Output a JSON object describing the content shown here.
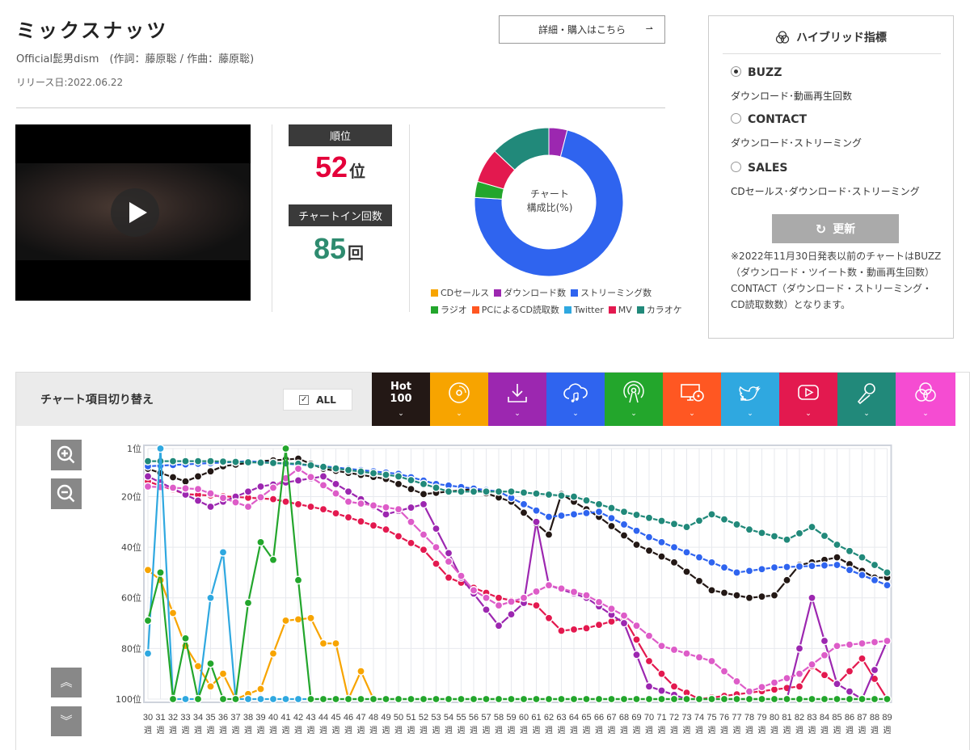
{
  "song": {
    "title": "ミックスナッツ",
    "artist_line": "Official髭男dism　(作詞：藤原聡 / 作曲：藤原聡)",
    "release": "リリース日:2022.06.22"
  },
  "buy_button": "詳細・購入はこちら",
  "stats": {
    "rank_label": "順位",
    "rank_value": "52",
    "rank_unit": "位",
    "count_label": "チャートイン回数",
    "count_value": "85",
    "count_unit": "回"
  },
  "donut": {
    "label_line1": "チャート",
    "label_line2": "構成比(%)"
  },
  "legend": [
    {
      "name": "CDセールス",
      "color": "#f7a400"
    },
    {
      "name": "ダウンロード数",
      "color": "#9c27b0"
    },
    {
      "name": "ストリーミング数",
      "color": "#2f64ef"
    },
    {
      "name": "ラジオ",
      "color": "#23a62c"
    },
    {
      "name": "PCによるCD読取数",
      "color": "#ff5722"
    },
    {
      "name": "Twitter",
      "color": "#2fa8e0"
    },
    {
      "name": "MV",
      "color": "#e3194f"
    },
    {
      "name": "カラオケ",
      "color": "#21897a"
    }
  ],
  "hybrid": {
    "title": "ハイブリッド指標",
    "options": [
      {
        "name": "BUZZ",
        "desc": "ダウンロード･動画再生回数",
        "selected": true
      },
      {
        "name": "CONTACT",
        "desc": "ダウンロード･ストリーミング",
        "selected": false
      },
      {
        "name": "SALES",
        "desc": "CDセールス･ダウンロード･ストリーミング",
        "selected": false
      }
    ],
    "refresh": "更新",
    "note": "※2022年11月30日発表以前のチャートはBUZZ（ダウンロード・ツイート数・動画再生回数）CONTACT（ダウンロード・ストリーミング・CD読取数数）となります。"
  },
  "toolbar": {
    "label": "チャート項目切り替え",
    "all": "ALL",
    "hot_line1": "Hot",
    "hot_line2": "100"
  },
  "tabs": [
    {
      "name": "hot100",
      "color": "#231815",
      "icon": "hot-100-text"
    },
    {
      "name": "cd",
      "color": "#f7a400",
      "icon": "cd-icon"
    },
    {
      "name": "download",
      "color": "#9c27b0",
      "icon": "download-icon"
    },
    {
      "name": "streaming",
      "color": "#2f64ef",
      "icon": "cloud-music-icon"
    },
    {
      "name": "radio",
      "color": "#23a62c",
      "icon": "radio-icon"
    },
    {
      "name": "pc",
      "color": "#ff5722",
      "icon": "pc-cd-icon"
    },
    {
      "name": "twitter",
      "color": "#2fa8e0",
      "icon": "twitter-icon"
    },
    {
      "name": "mv",
      "color": "#e3194f",
      "icon": "youtube-icon"
    },
    {
      "name": "karaoke",
      "color": "#21897a",
      "icon": "mic-icon"
    },
    {
      "name": "hybrid",
      "color": "#f54cd2",
      "icon": "hybrid-icon"
    }
  ],
  "chart_data": {
    "type": "line",
    "y_ticks": [
      "1位",
      "20位",
      "40位",
      "60位",
      "80位",
      "100位"
    ],
    "ylim": [
      1,
      100
    ],
    "y_reversed": true,
    "x_labels": [
      "30",
      "31",
      "32",
      "33",
      "34",
      "35",
      "36",
      "37",
      "38",
      "39",
      "40",
      "41",
      "42",
      "43",
      "44",
      "45",
      "46",
      "47",
      "48",
      "49",
      "50",
      "51",
      "52",
      "53",
      "54",
      "55",
      "56",
      "57",
      "58",
      "59",
      "60",
      "61",
      "62",
      "63",
      "64",
      "65",
      "66",
      "67",
      "68",
      "69",
      "70",
      "71",
      "72",
      "73",
      "74",
      "75",
      "76",
      "77",
      "78",
      "79",
      "80",
      "81",
      "82",
      "83",
      "84",
      "85",
      "86",
      "87",
      "88",
      "89"
    ],
    "x_unit": "週",
    "series": [
      {
        "key": "hot100",
        "color": "#231815",
        "anchors": [
          [
            0,
            9
          ],
          [
            3,
            14
          ],
          [
            6,
            8
          ],
          [
            9,
            6
          ],
          [
            12,
            5
          ],
          [
            14,
            9
          ],
          [
            19,
            13
          ],
          [
            22,
            19
          ],
          [
            26,
            17
          ],
          [
            29,
            22
          ],
          [
            32,
            35
          ],
          [
            33,
            19
          ],
          [
            36,
            28
          ],
          [
            39,
            39
          ],
          [
            42,
            46
          ],
          [
            45,
            57
          ],
          [
            48,
            60
          ],
          [
            50,
            59
          ],
          [
            52,
            47
          ],
          [
            55,
            44
          ],
          [
            58,
            52
          ],
          [
            59,
            52
          ]
        ]
      },
      {
        "key": "streaming",
        "color": "#2f64ef",
        "anchors": [
          [
            0,
            8
          ],
          [
            8,
            6
          ],
          [
            14,
            8
          ],
          [
            20,
            11
          ],
          [
            23,
            15
          ],
          [
            28,
            18
          ],
          [
            32,
            28
          ],
          [
            36,
            26
          ],
          [
            40,
            36
          ],
          [
            44,
            44
          ],
          [
            47,
            50
          ],
          [
            50,
            48
          ],
          [
            55,
            47
          ],
          [
            59,
            55
          ]
        ]
      },
      {
        "key": "karaoke",
        "color": "#21897a",
        "anchors": [
          [
            0,
            6
          ],
          [
            5,
            6
          ],
          [
            12,
            7
          ],
          [
            20,
            12
          ],
          [
            24,
            18
          ],
          [
            29,
            18
          ],
          [
            34,
            20
          ],
          [
            38,
            26
          ],
          [
            43,
            32
          ],
          [
            45,
            27
          ],
          [
            48,
            33
          ],
          [
            51,
            37
          ],
          [
            53,
            32
          ],
          [
            55,
            39
          ],
          [
            57,
            44
          ],
          [
            59,
            50
          ]
        ]
      },
      {
        "key": "mv",
        "color": "#e3194f",
        "anchors": [
          [
            0,
            14
          ],
          [
            3,
            19
          ],
          [
            10,
            21
          ],
          [
            14,
            25
          ],
          [
            19,
            33
          ],
          [
            22,
            41
          ],
          [
            24,
            52
          ],
          [
            28,
            60
          ],
          [
            31,
            63
          ],
          [
            33,
            73
          ],
          [
            35,
            72
          ],
          [
            38,
            68
          ],
          [
            40,
            85
          ],
          [
            42,
            95
          ],
          [
            44,
            100
          ],
          [
            52,
            95
          ],
          [
            53,
            87
          ],
          [
            55,
            94
          ],
          [
            57,
            84
          ],
          [
            59,
            100
          ]
        ]
      },
      {
        "key": "download",
        "color": "#9c27b0",
        "anchors": [
          [
            0,
            12
          ],
          [
            5,
            24
          ],
          [
            9,
            16
          ],
          [
            14,
            12
          ],
          [
            19,
            27
          ],
          [
            22,
            23
          ],
          [
            25,
            52
          ],
          [
            28,
            71
          ],
          [
            30,
            62
          ],
          [
            31,
            30
          ],
          [
            32,
            55
          ],
          [
            35,
            60
          ],
          [
            38,
            70
          ],
          [
            40,
            95
          ],
          [
            43,
            100
          ],
          [
            49,
            100
          ],
          [
            51,
            100
          ],
          [
            53,
            60
          ],
          [
            55,
            94
          ],
          [
            57,
            100
          ],
          [
            59,
            77
          ]
        ]
      },
      {
        "key": "hybrid",
        "color": "#dd5cc8",
        "anchors": [
          [
            0,
            16
          ],
          [
            4,
            17
          ],
          [
            8,
            24
          ],
          [
            12,
            9
          ],
          [
            16,
            22
          ],
          [
            20,
            25
          ],
          [
            23,
            40
          ],
          [
            26,
            57
          ],
          [
            28,
            63
          ],
          [
            30,
            60
          ],
          [
            32,
            55
          ],
          [
            35,
            59
          ],
          [
            38,
            67
          ],
          [
            41,
            79
          ],
          [
            45,
            85
          ],
          [
            48,
            97
          ],
          [
            52,
            90
          ],
          [
            55,
            79
          ],
          [
            59,
            77
          ]
        ]
      },
      {
        "key": "cd",
        "color": "#f7a400",
        "anchors": [
          [
            0,
            49
          ],
          [
            1,
            53
          ],
          [
            3,
            79
          ],
          [
            5,
            95
          ],
          [
            6,
            90
          ],
          [
            7,
            100
          ],
          [
            9,
            96
          ],
          [
            10,
            82
          ],
          [
            11,
            69
          ],
          [
            13,
            68
          ],
          [
            14,
            78
          ],
          [
            15,
            78
          ],
          [
            16,
            100
          ],
          [
            17,
            89
          ],
          [
            18,
            100
          ],
          [
            59,
            100
          ]
        ]
      },
      {
        "key": "twitter",
        "color": "#2fa8e0",
        "anchors": [
          [
            0,
            82
          ],
          [
            1,
            1
          ],
          [
            2,
            100
          ],
          [
            4,
            100
          ],
          [
            5,
            60
          ],
          [
            6,
            42
          ],
          [
            7,
            100
          ],
          [
            59,
            100
          ]
        ]
      },
      {
        "key": "radio",
        "color": "#23a62c",
        "anchors": [
          [
            0,
            69
          ],
          [
            1,
            50
          ],
          [
            2,
            100
          ],
          [
            3,
            76
          ],
          [
            4,
            100
          ],
          [
            5,
            86
          ],
          [
            6,
            100
          ],
          [
            7,
            100
          ],
          [
            8,
            62
          ],
          [
            9,
            38
          ],
          [
            10,
            45
          ],
          [
            11,
            1
          ],
          [
            12,
            53
          ],
          [
            13,
            100
          ],
          [
            15,
            100
          ],
          [
            16,
            100
          ],
          [
            59,
            100
          ]
        ]
      }
    ]
  }
}
